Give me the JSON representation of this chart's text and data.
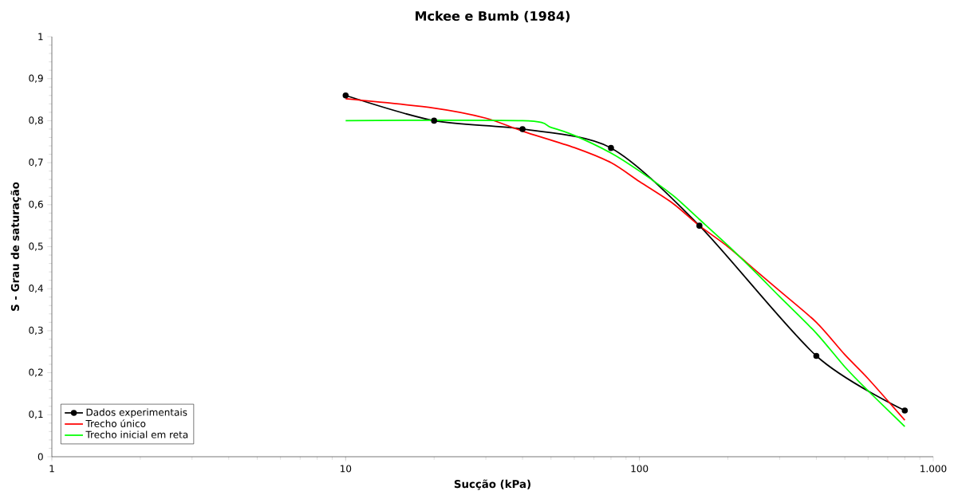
{
  "chart_data": {
    "type": "line",
    "title": "Mckee e Bumb (1984)",
    "xlabel": "Sucção (kPa)",
    "ylabel": "S - Grau de saturação",
    "log": "x",
    "xlim": [
      1,
      1000
    ],
    "ylim": [
      0,
      1
    ],
    "xticks": [
      1,
      10,
      100,
      {
        "value": 1000,
        "label": "1.000"
      }
    ],
    "yticks": [
      0,
      {
        "value": 0.1,
        "label": "0,1"
      },
      {
        "value": 0.2,
        "label": "0,2"
      },
      {
        "value": 0.3,
        "label": "0,3"
      },
      {
        "value": 0.4,
        "label": "0,4"
      },
      {
        "value": 0.5,
        "label": "0,5"
      },
      {
        "value": 0.6,
        "label": "0,6"
      },
      {
        "value": 0.7,
        "label": "0,7"
      },
      {
        "value": 0.8,
        "label": "0,8"
      },
      {
        "value": 0.9,
        "label": "0,9"
      },
      1
    ],
    "grid": false,
    "legend": "bottom left",
    "line_style": "solid",
    "series": [
      {
        "name": "Dados experimentais",
        "color": "#000000",
        "marker": "circle",
        "x": [
          10,
          20,
          40,
          80,
          160,
          400,
          800
        ],
        "values": [
          0.86,
          0.8,
          0.78,
          0.735,
          0.55,
          0.24,
          0.11
        ]
      },
      {
        "name": "Trecho único",
        "color": "#ff0000",
        "marker": "none",
        "x": [
          10,
          20,
          30,
          40,
          60,
          80,
          100,
          130,
          160,
          200,
          250,
          300,
          400,
          500,
          600,
          800
        ],
        "values": [
          0.852,
          0.83,
          0.806,
          0.775,
          0.736,
          0.7,
          0.655,
          0.603,
          0.55,
          0.5,
          0.442,
          0.395,
          0.32,
          0.243,
          0.186,
          0.087
        ]
      },
      {
        "name": "Trecho inicial em reta",
        "color": "#00ff00",
        "marker": "none",
        "x": [
          10,
          40,
          50,
          60,
          80,
          100,
          130,
          160,
          200,
          250,
          300,
          400,
          500,
          600,
          800
        ],
        "values": [
          0.8,
          0.8,
          0.784,
          0.765,
          0.723,
          0.68,
          0.622,
          0.565,
          0.503,
          0.437,
          0.381,
          0.294,
          0.214,
          0.157,
          0.072
        ]
      }
    ]
  }
}
